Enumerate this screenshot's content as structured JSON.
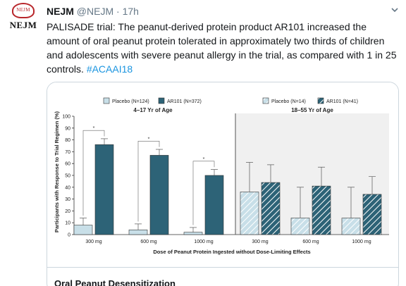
{
  "account": {
    "avatar_text": "NEJM",
    "avatar_seal_text": "NEJM",
    "name": "NEJM",
    "handle": "@NEJM",
    "separator": "·",
    "time": "17h",
    "caret_icon": "chevron-down-icon"
  },
  "tweet": {
    "text": "PALISADE trial: The peanut-derived protein product AR101 increased the amount of oral peanut protein tolerated in approximately two thirds of children and adolescents with severe peanut allergy in the trial, as compared with 1 in 25 controls. ",
    "hashtag": "#ACAAI18"
  },
  "card": {
    "title": "Oral Peanut Desensitization"
  },
  "colors": {
    "placebo": "#c8dfe8",
    "ar101": "#2d6377",
    "hashtag": "#1b95e0"
  },
  "chart_data": {
    "type": "bar",
    "ylabel": "Participants with Response to Trial Regimen (%)",
    "xlabel": "Dose of Peanut Protein Ingested without Dose-Limiting Effects",
    "ylim": [
      0,
      100
    ],
    "yticks": [
      "0",
      "10",
      "20",
      "30",
      "40",
      "50",
      "60",
      "70",
      "80",
      "90",
      "100"
    ],
    "panels": [
      {
        "title": "4–17 Yr of Age",
        "legend": [
          {
            "name": "Placebo (N=124)"
          },
          {
            "name": "AR101 (N=372)"
          }
        ],
        "categories": [
          "300 mg",
          "600 mg",
          "1000 mg"
        ],
        "series": [
          {
            "values": [
              8,
              4,
              2
            ],
            "error_upper": [
              14,
              9,
              6
            ]
          },
          {
            "values": [
              76,
              67,
              50
            ],
            "error_upper": [
              81,
              72,
              55
            ]
          }
        ],
        "significance_marks": [
          "*",
          "*",
          "*"
        ]
      },
      {
        "title": "18–55 Yr of Age",
        "legend": [
          {
            "name": "Placebo (N=14)"
          },
          {
            "name": "AR101 (N=41)"
          }
        ],
        "categories": [
          "300 mg",
          "600 mg",
          "1000 mg"
        ],
        "series": [
          {
            "values": [
              36,
              14,
              14
            ],
            "error_upper": [
              61,
              40,
              40
            ]
          },
          {
            "values": [
              44,
              41,
              34
            ],
            "error_upper": [
              59,
              57,
              49
            ]
          }
        ]
      }
    ]
  }
}
